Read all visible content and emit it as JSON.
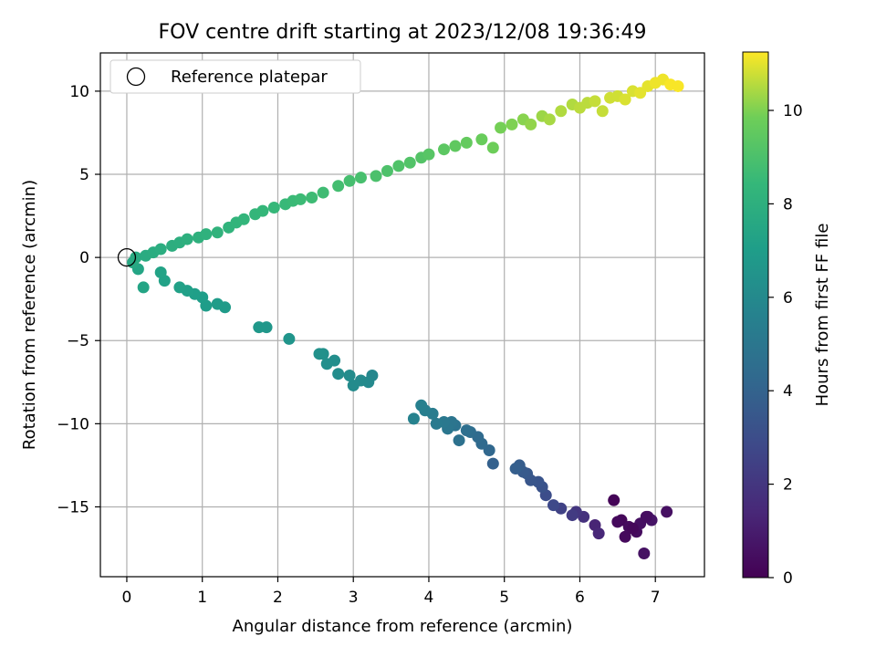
{
  "chart_data": {
    "type": "scatter",
    "title": "FOV centre drift starting at 2023/12/08 19:36:49",
    "xlabel": "Angular distance from reference (arcmin)",
    "ylabel": "Rotation from reference (arcmin)",
    "xlim": [
      -0.35,
      7.65
    ],
    "ylim": [
      -19.2,
      12.3
    ],
    "x_ticks": [
      0,
      1,
      2,
      3,
      4,
      5,
      6,
      7
    ],
    "y_ticks": [
      -15,
      -10,
      -5,
      0,
      5,
      10
    ],
    "x_tick_labels": [
      "0",
      "1",
      "2",
      "3",
      "4",
      "5",
      "6",
      "7"
    ],
    "y_tick_labels": [
      "−15",
      "−10",
      "−5",
      "0",
      "5",
      "10"
    ],
    "grid": true,
    "legend": {
      "placement": "top-left",
      "entries": [
        "Reference platepar"
      ]
    },
    "reference_point": {
      "x": 0,
      "y": 0,
      "label": "Reference platepar"
    },
    "colorbar": {
      "label": "Hours from first FF file",
      "range": [
        0,
        11.25
      ],
      "ticks": [
        0,
        2,
        4,
        6,
        8,
        10
      ],
      "tick_labels": [
        "0",
        "2",
        "4",
        "6",
        "8",
        "10"
      ],
      "colormap": "viridis"
    },
    "x": [
      6.45,
      6.55,
      6.6,
      6.65,
      6.75,
      6.8,
      6.85,
      6.9,
      6.95,
      7.15,
      6.88,
      6.7,
      6.5,
      6.2,
      6.25,
      6.05,
      5.95,
      5.9,
      5.75,
      5.65,
      5.55,
      5.5,
      5.45,
      5.35,
      5.3,
      5.25,
      5.2,
      5.15,
      4.85,
      4.8,
      4.7,
      4.65,
      4.55,
      4.5,
      4.4,
      4.35,
      4.3,
      4.25,
      4.2,
      4.1,
      4.05,
      3.95,
      3.9,
      3.8,
      3.25,
      3.2,
      3.1,
      3.0,
      2.95,
      2.8,
      2.75,
      2.65,
      2.6,
      2.55,
      2.15,
      1.85,
      1.75,
      1.3,
      1.2,
      1.05,
      1.0,
      0.9,
      0.8,
      0.7,
      0.5,
      0.45,
      0.22,
      0.15,
      0.08,
      0.12,
      0.25,
      0.35,
      0.45,
      0.6,
      0.7,
      0.8,
      0.95,
      1.05,
      1.2,
      1.35,
      1.45,
      1.55,
      1.7,
      1.8,
      1.95,
      2.1,
      2.2,
      2.3,
      2.45,
      2.6,
      2.8,
      2.95,
      3.1,
      3.3,
      3.45,
      3.6,
      3.75,
      3.9,
      4.0,
      4.2,
      4.35,
      4.5,
      4.7,
      4.85,
      4.95,
      5.1,
      5.25,
      5.35,
      5.5,
      5.6,
      5.75,
      5.9,
      6.0,
      6.1,
      6.2,
      6.3,
      6.4,
      6.5,
      6.6,
      6.7,
      6.8,
      6.9,
      7.0,
      7.1,
      7.2,
      7.3
    ],
    "y": [
      -14.6,
      -15.8,
      -16.8,
      -16.2,
      -16.5,
      -16.0,
      -17.8,
      -15.6,
      -15.8,
      -15.3,
      -15.6,
      -16.3,
      -15.9,
      -16.1,
      -16.6,
      -15.6,
      -15.3,
      -15.5,
      -15.1,
      -14.9,
      -14.3,
      -13.8,
      -13.5,
      -13.4,
      -13.0,
      -12.9,
      -12.5,
      -12.7,
      -12.4,
      -11.6,
      -11.2,
      -10.8,
      -10.5,
      -10.4,
      -11.0,
      -10.1,
      -9.9,
      -10.3,
      -9.9,
      -10.0,
      -9.4,
      -9.2,
      -8.9,
      -9.7,
      -7.1,
      -7.5,
      -7.4,
      -7.7,
      -7.1,
      -7.0,
      -6.2,
      -6.4,
      -5.8,
      -5.8,
      -4.9,
      -4.2,
      -4.2,
      -3.0,
      -2.8,
      -2.9,
      -2.4,
      -2.2,
      -2.0,
      -1.8,
      -1.4,
      -0.9,
      -1.8,
      -0.7,
      -0.3,
      0.0,
      0.1,
      0.3,
      0.5,
      0.7,
      0.9,
      1.1,
      1.2,
      1.4,
      1.5,
      1.8,
      2.1,
      2.3,
      2.6,
      2.8,
      3.0,
      3.2,
      3.4,
      3.5,
      3.6,
      3.9,
      4.3,
      4.6,
      4.8,
      4.9,
      5.2,
      5.5,
      5.7,
      6.0,
      6.2,
      6.5,
      6.7,
      6.9,
      7.1,
      6.6,
      7.8,
      8.0,
      8.3,
      8.0,
      8.5,
      8.3,
      8.8,
      9.2,
      9.0,
      9.3,
      9.4,
      8.8,
      9.6,
      9.7,
      9.5,
      10.0,
      9.9,
      10.3,
      10.5,
      10.7,
      10.4,
      10.3
    ],
    "hours": [
      0.1,
      0.2,
      0.3,
      0.35,
      0.4,
      0.5,
      0.6,
      0.65,
      0.7,
      0.55,
      0.45,
      0.25,
      0.3,
      1.3,
      1.4,
      1.8,
      2.0,
      2.2,
      2.5,
      2.8,
      3.0,
      3.2,
      3.3,
      3.4,
      3.5,
      3.6,
      3.7,
      3.8,
      3.9,
      4.2,
      4.3,
      4.4,
      4.5,
      4.6,
      4.7,
      4.8,
      4.9,
      5.0,
      5.1,
      5.2,
      5.3,
      5.4,
      5.5,
      5.6,
      5.9,
      6.0,
      6.05,
      6.1,
      6.15,
      6.2,
      6.25,
      6.3,
      6.35,
      6.4,
      6.6,
      6.7,
      6.75,
      6.9,
      6.95,
      7.0,
      7.05,
      7.1,
      7.15,
      7.2,
      7.25,
      7.3,
      7.35,
      7.4,
      7.6,
      7.7,
      7.75,
      7.8,
      7.85,
      7.9,
      7.95,
      8.0,
      8.05,
      8.1,
      8.15,
      8.2,
      8.25,
      8.3,
      8.35,
      8.4,
      8.45,
      8.5,
      8.55,
      8.6,
      8.65,
      8.7,
      8.8,
      8.85,
      8.9,
      9.0,
      9.05,
      9.1,
      9.15,
      9.2,
      9.3,
      9.4,
      9.5,
      9.6,
      9.7,
      9.8,
      9.9,
      10.0,
      10.1,
      10.2,
      10.3,
      10.4,
      10.5,
      10.5,
      10.6,
      10.6,
      10.7,
      10.7,
      10.8,
      10.8,
      10.9,
      10.9,
      11.0,
      11.0,
      11.1,
      11.1,
      11.2,
      11.2
    ]
  }
}
